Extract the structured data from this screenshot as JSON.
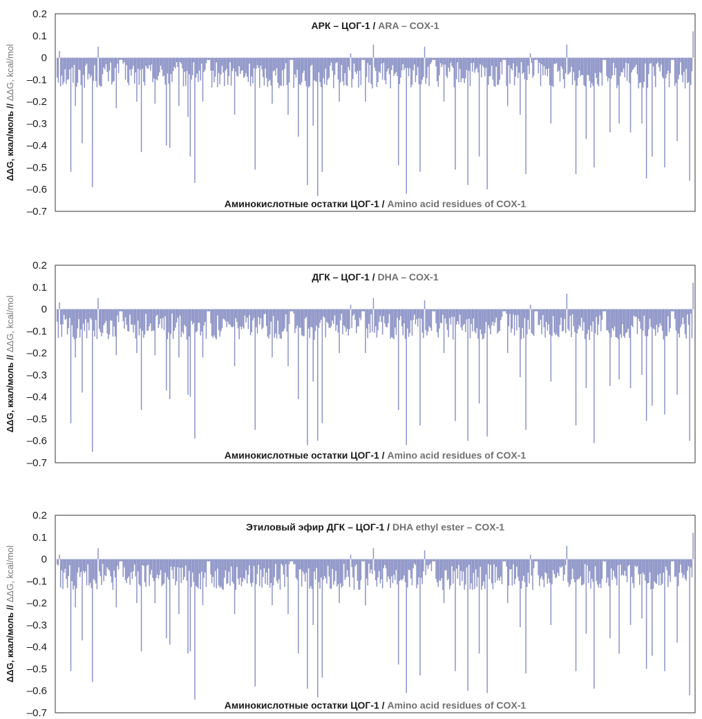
{
  "charts": [
    {
      "title_ru": "АРК – ЦОГ-1 / ",
      "title_en": "ARA – COX-1",
      "xlabel_ru": "Аминокислотные остатки ЦОГ-1 / ",
      "xlabel_en": "Amino acid residues of COX-1",
      "ylabel_ru": "ΔΔG, ккал/моль // ",
      "ylabel_en": "ΔΔG, kcal/mol",
      "y_ticks": [
        "0.2",
        "0.1",
        "0",
        "–0.1",
        "–0.2",
        "–0.3",
        "–0.4",
        "–0.5",
        "–0.6",
        "–0.7"
      ]
    },
    {
      "title_ru": "ДГК – ЦОГ-1 / ",
      "title_en": "DHA – COX-1",
      "xlabel_ru": "Аминокислотные остатки ЦОГ-1 / ",
      "xlabel_en": "Amino acid residues of COX-1",
      "ylabel_ru": "ΔΔG, ккал/моль // ",
      "ylabel_en": "ΔΔG, kcal/mol",
      "y_ticks": [
        "0.2",
        "0.1",
        "0",
        "–0.1",
        "–0.2",
        "–0.3",
        "–0.4",
        "–0.5",
        "–0.6",
        "–0.7"
      ]
    },
    {
      "title_ru": "Этиловый эфир ДГК – ЦОГ-1 / ",
      "title_en": "DHA ethyl ester – COX-1",
      "xlabel_ru": "Аминокислотные остатки ЦОГ-1 / ",
      "xlabel_en": "Amino acid residues of COX-1",
      "ylabel_ru": "ΔΔG, ккал/моль // ",
      "ylabel_en": "ΔΔG, kcal/mol",
      "y_ticks": [
        "0.2",
        "0.1",
        "0",
        "–0.1",
        "–0.2",
        "–0.3",
        "–0.4",
        "–0.5",
        "–0.6",
        "–0.7"
      ]
    }
  ],
  "colors": {
    "bar": "#8c93c6",
    "axis": "#333333"
  },
  "chart_data": [
    {
      "type": "bar",
      "title": "АРК – ЦОГ-1 / ARA – COX-1",
      "xlabel": "Аминокислотные остатки ЦОГ-1 / Amino acid residues of COX-1",
      "ylabel": "ΔΔG, ккал/моль // ΔΔG, kcal/mol",
      "ylim": [
        -0.7,
        0.2
      ],
      "grid": false,
      "legend": "none",
      "residue_count": 560,
      "baseline_range": [
        -0.14,
        -0.02
      ],
      "spikes": [
        {
          "x": 2,
          "y": 0.03
        },
        {
          "x": 12,
          "y": -0.52
        },
        {
          "x": 16,
          "y": -0.22
        },
        {
          "x": 22,
          "y": -0.39
        },
        {
          "x": 31,
          "y": -0.59
        },
        {
          "x": 36,
          "y": 0.05
        },
        {
          "x": 52,
          "y": -0.23
        },
        {
          "x": 70,
          "y": -0.2
        },
        {
          "x": 74,
          "y": -0.43
        },
        {
          "x": 86,
          "y": -0.21
        },
        {
          "x": 96,
          "y": -0.4
        },
        {
          "x": 99,
          "y": -0.41
        },
        {
          "x": 107,
          "y": -0.22
        },
        {
          "x": 115,
          "y": -0.27
        },
        {
          "x": 117,
          "y": -0.45
        },
        {
          "x": 121,
          "y": -0.57
        },
        {
          "x": 128,
          "y": -0.2
        },
        {
          "x": 156,
          "y": -0.26
        },
        {
          "x": 174,
          "y": -0.51
        },
        {
          "x": 189,
          "y": -0.21
        },
        {
          "x": 203,
          "y": -0.26
        },
        {
          "x": 212,
          "y": -0.36
        },
        {
          "x": 220,
          "y": -0.58
        },
        {
          "x": 225,
          "y": -0.31
        },
        {
          "x": 229,
          "y": -0.63
        },
        {
          "x": 233,
          "y": -0.52
        },
        {
          "x": 248,
          "y": -0.2
        },
        {
          "x": 258,
          "y": 0.02
        },
        {
          "x": 271,
          "y": -0.2
        },
        {
          "x": 278,
          "y": 0.06
        },
        {
          "x": 300,
          "y": -0.49
        },
        {
          "x": 307,
          "y": -0.62
        },
        {
          "x": 319,
          "y": -0.52
        },
        {
          "x": 323,
          "y": 0.05
        },
        {
          "x": 340,
          "y": -0.2
        },
        {
          "x": 350,
          "y": -0.51
        },
        {
          "x": 361,
          "y": -0.58
        },
        {
          "x": 371,
          "y": -0.45
        },
        {
          "x": 378,
          "y": -0.6
        },
        {
          "x": 396,
          "y": -0.22
        },
        {
          "x": 407,
          "y": -0.26
        },
        {
          "x": 412,
          "y": -0.53
        },
        {
          "x": 416,
          "y": 0.02
        },
        {
          "x": 434,
          "y": -0.3
        },
        {
          "x": 448,
          "y": 0.06
        },
        {
          "x": 456,
          "y": -0.53
        },
        {
          "x": 465,
          "y": -0.37
        },
        {
          "x": 472,
          "y": -0.5
        },
        {
          "x": 486,
          "y": -0.34
        },
        {
          "x": 494,
          "y": -0.3
        },
        {
          "x": 504,
          "y": -0.34
        },
        {
          "x": 514,
          "y": -0.3
        },
        {
          "x": 518,
          "y": -0.55
        },
        {
          "x": 523,
          "y": -0.45
        },
        {
          "x": 534,
          "y": -0.5
        },
        {
          "x": 545,
          "y": -0.38
        },
        {
          "x": 556,
          "y": -0.56
        },
        {
          "x": 559,
          "y": 0.12
        }
      ]
    },
    {
      "type": "bar",
      "title": "ДГК – ЦОГ-1 / DHA – COX-1",
      "xlabel": "Аминокислотные остатки ЦОГ-1 / Amino acid residues of COX-1",
      "ylabel": "ΔΔG, ккал/моль // ΔΔG, kcal/mol",
      "ylim": [
        -0.7,
        0.2
      ],
      "grid": false,
      "legend": "none",
      "residue_count": 560,
      "baseline_range": [
        -0.14,
        -0.02
      ],
      "spikes": [
        {
          "x": 2,
          "y": 0.03
        },
        {
          "x": 12,
          "y": -0.52
        },
        {
          "x": 16,
          "y": -0.22
        },
        {
          "x": 22,
          "y": -0.38
        },
        {
          "x": 31,
          "y": -0.65
        },
        {
          "x": 36,
          "y": 0.05
        },
        {
          "x": 52,
          "y": -0.21
        },
        {
          "x": 70,
          "y": -0.2
        },
        {
          "x": 74,
          "y": -0.46
        },
        {
          "x": 86,
          "y": -0.21
        },
        {
          "x": 96,
          "y": -0.37
        },
        {
          "x": 99,
          "y": -0.41
        },
        {
          "x": 107,
          "y": -0.22
        },
        {
          "x": 115,
          "y": -0.39
        },
        {
          "x": 117,
          "y": -0.4
        },
        {
          "x": 121,
          "y": -0.59
        },
        {
          "x": 128,
          "y": -0.22
        },
        {
          "x": 156,
          "y": -0.26
        },
        {
          "x": 174,
          "y": -0.55
        },
        {
          "x": 189,
          "y": -0.22
        },
        {
          "x": 203,
          "y": -0.26
        },
        {
          "x": 212,
          "y": -0.41
        },
        {
          "x": 220,
          "y": -0.62
        },
        {
          "x": 225,
          "y": -0.33
        },
        {
          "x": 229,
          "y": -0.6
        },
        {
          "x": 233,
          "y": -0.52
        },
        {
          "x": 248,
          "y": -0.2
        },
        {
          "x": 258,
          "y": 0.02
        },
        {
          "x": 271,
          "y": -0.2
        },
        {
          "x": 278,
          "y": 0.05
        },
        {
          "x": 300,
          "y": -0.46
        },
        {
          "x": 307,
          "y": -0.62
        },
        {
          "x": 319,
          "y": -0.53
        },
        {
          "x": 323,
          "y": 0.04
        },
        {
          "x": 340,
          "y": -0.2
        },
        {
          "x": 350,
          "y": -0.51
        },
        {
          "x": 361,
          "y": -0.6
        },
        {
          "x": 371,
          "y": -0.43
        },
        {
          "x": 378,
          "y": -0.58
        },
        {
          "x": 396,
          "y": -0.2
        },
        {
          "x": 407,
          "y": -0.31
        },
        {
          "x": 412,
          "y": -0.55
        },
        {
          "x": 416,
          "y": 0.02
        },
        {
          "x": 434,
          "y": -0.33
        },
        {
          "x": 448,
          "y": 0.07
        },
        {
          "x": 456,
          "y": -0.53
        },
        {
          "x": 465,
          "y": -0.36
        },
        {
          "x": 472,
          "y": -0.61
        },
        {
          "x": 486,
          "y": -0.35
        },
        {
          "x": 494,
          "y": -0.32
        },
        {
          "x": 504,
          "y": -0.36
        },
        {
          "x": 514,
          "y": -0.3
        },
        {
          "x": 518,
          "y": -0.51
        },
        {
          "x": 523,
          "y": -0.44
        },
        {
          "x": 534,
          "y": -0.48
        },
        {
          "x": 545,
          "y": -0.39
        },
        {
          "x": 556,
          "y": -0.6
        },
        {
          "x": 559,
          "y": 0.12
        }
      ]
    },
    {
      "type": "bar",
      "title": "Этиловый эфир ДГК – ЦОГ-1 / DHA ethyl ester – COX-1",
      "xlabel": "Аминокислотные остатки ЦОГ-1 / Amino acid residues of COX-1",
      "ylabel": "ΔΔG, ккал/моль // ΔΔG, kcal/mol",
      "ylim": [
        -0.7,
        0.2
      ],
      "grid": false,
      "legend": "none",
      "residue_count": 560,
      "baseline_range": [
        -0.14,
        -0.02
      ],
      "spikes": [
        {
          "x": 2,
          "y": 0.02
        },
        {
          "x": 12,
          "y": -0.51
        },
        {
          "x": 16,
          "y": -0.22
        },
        {
          "x": 22,
          "y": -0.37
        },
        {
          "x": 31,
          "y": -0.56
        },
        {
          "x": 36,
          "y": 0.05
        },
        {
          "x": 52,
          "y": -0.22
        },
        {
          "x": 70,
          "y": -0.2
        },
        {
          "x": 74,
          "y": -0.42
        },
        {
          "x": 86,
          "y": -0.2
        },
        {
          "x": 96,
          "y": -0.36
        },
        {
          "x": 99,
          "y": -0.39
        },
        {
          "x": 107,
          "y": -0.25
        },
        {
          "x": 115,
          "y": -0.43
        },
        {
          "x": 117,
          "y": -0.42
        },
        {
          "x": 121,
          "y": -0.64
        },
        {
          "x": 128,
          "y": -0.21
        },
        {
          "x": 156,
          "y": -0.25
        },
        {
          "x": 174,
          "y": -0.58
        },
        {
          "x": 189,
          "y": -0.21
        },
        {
          "x": 203,
          "y": -0.25
        },
        {
          "x": 212,
          "y": -0.43
        },
        {
          "x": 220,
          "y": -0.59
        },
        {
          "x": 225,
          "y": -0.3
        },
        {
          "x": 229,
          "y": -0.63
        },
        {
          "x": 233,
          "y": -0.54
        },
        {
          "x": 248,
          "y": -0.2
        },
        {
          "x": 258,
          "y": 0.02
        },
        {
          "x": 271,
          "y": -0.21
        },
        {
          "x": 278,
          "y": 0.05
        },
        {
          "x": 300,
          "y": -0.48
        },
        {
          "x": 307,
          "y": -0.61
        },
        {
          "x": 319,
          "y": -0.53
        },
        {
          "x": 323,
          "y": 0.04
        },
        {
          "x": 340,
          "y": -0.2
        },
        {
          "x": 350,
          "y": -0.51
        },
        {
          "x": 361,
          "y": -0.6
        },
        {
          "x": 371,
          "y": -0.43
        },
        {
          "x": 378,
          "y": -0.61
        },
        {
          "x": 396,
          "y": -0.2
        },
        {
          "x": 407,
          "y": -0.31
        },
        {
          "x": 412,
          "y": -0.52
        },
        {
          "x": 416,
          "y": 0.02
        },
        {
          "x": 434,
          "y": -0.3
        },
        {
          "x": 448,
          "y": 0.06
        },
        {
          "x": 456,
          "y": -0.51
        },
        {
          "x": 465,
          "y": -0.34
        },
        {
          "x": 472,
          "y": -0.59
        },
        {
          "x": 486,
          "y": -0.36
        },
        {
          "x": 494,
          "y": -0.43
        },
        {
          "x": 504,
          "y": -0.3
        },
        {
          "x": 514,
          "y": -0.27
        },
        {
          "x": 518,
          "y": -0.5
        },
        {
          "x": 523,
          "y": -0.44
        },
        {
          "x": 534,
          "y": -0.51
        },
        {
          "x": 545,
          "y": -0.38
        },
        {
          "x": 556,
          "y": -0.62
        },
        {
          "x": 559,
          "y": 0.12
        }
      ]
    }
  ]
}
